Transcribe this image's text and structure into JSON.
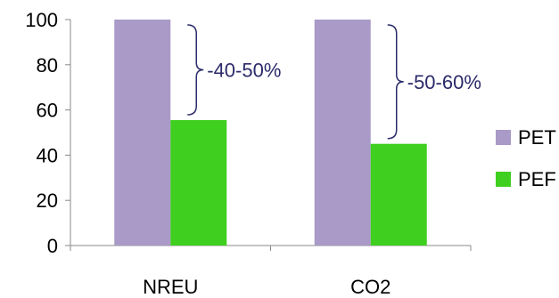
{
  "chart_data": {
    "type": "bar",
    "categories": [
      "NREU",
      "CO2"
    ],
    "series": [
      {
        "name": "PET",
        "color": "#a99ac8",
        "values": [
          100,
          100
        ]
      },
      {
        "name": "PEF",
        "color": "#3fcf1e",
        "values": [
          55.5,
          45
        ]
      }
    ],
    "ylim": [
      0,
      100
    ],
    "yticks": [
      0,
      20,
      40,
      60,
      80,
      100
    ],
    "grid": false,
    "legend_position": "right",
    "annotations": [
      {
        "text": "-40-50%",
        "category": "NREU",
        "from": 100,
        "to": 55.5,
        "color": "#2b2a6a"
      },
      {
        "text": "-50-60%",
        "category": "CO2",
        "from": 100,
        "to": 45,
        "color": "#2b2a6a"
      }
    ]
  }
}
